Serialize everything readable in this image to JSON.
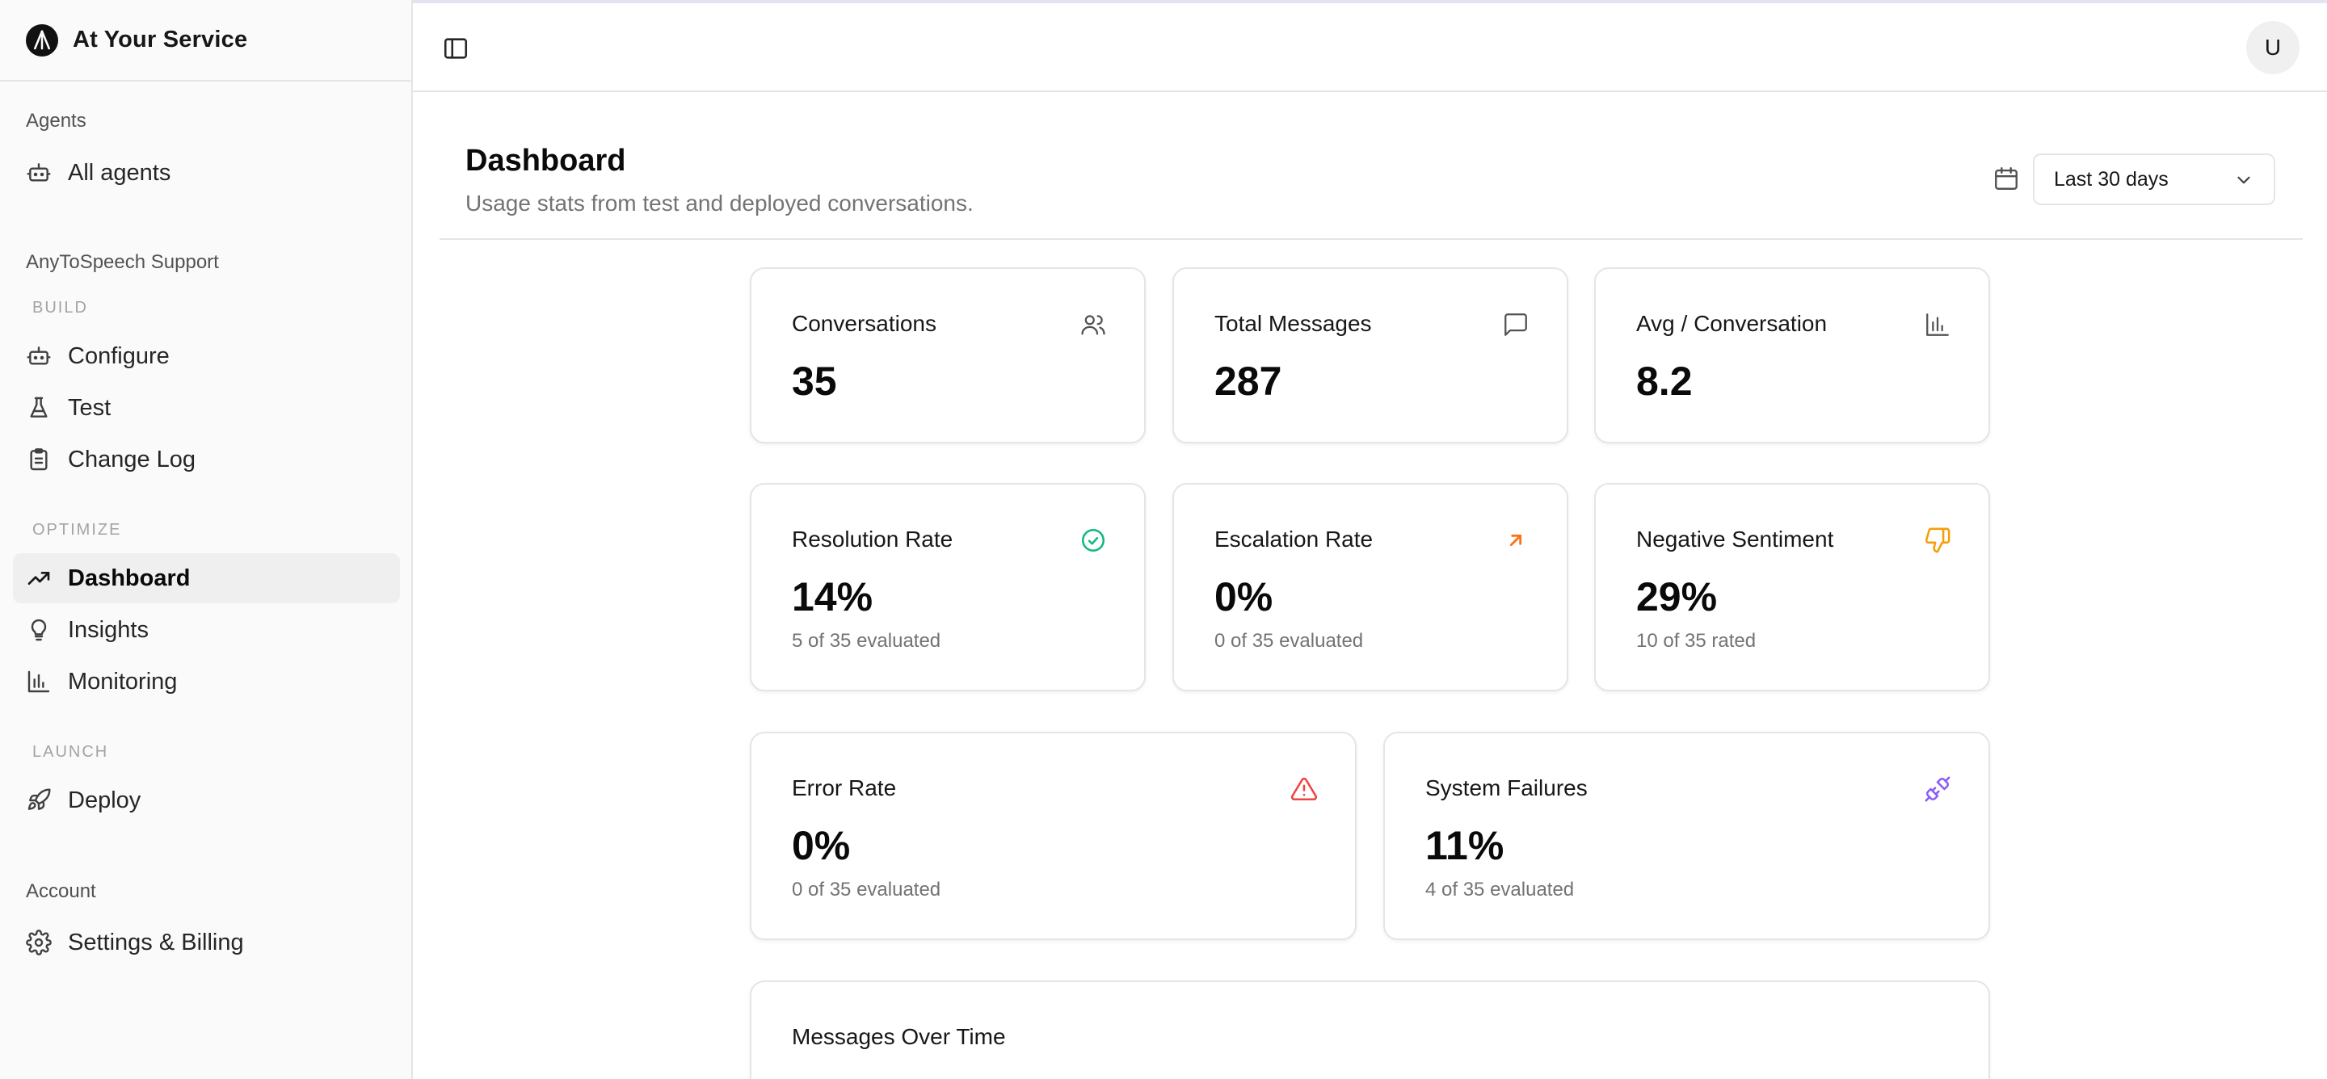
{
  "brand": {
    "name": "At Your Service"
  },
  "sidebar": {
    "agents_title": "Agents",
    "all_agents": "All agents",
    "project_title": "AnyToSpeech Support",
    "build_label": "BUILD",
    "configure": "Configure",
    "test": "Test",
    "change_log": "Change Log",
    "optimize_label": "OPTIMIZE",
    "dashboard": "Dashboard",
    "insights": "Insights",
    "monitoring": "Monitoring",
    "launch_label": "LAUNCH",
    "deploy": "Deploy",
    "account_title": "Account",
    "settings_billing": "Settings & Billing"
  },
  "topbar": {
    "avatar_initial": "U"
  },
  "page": {
    "title": "Dashboard",
    "subtitle": "Usage stats from test and deployed conversations.",
    "date_range": "Last 30 days"
  },
  "stats": {
    "conversations": {
      "label": "Conversations",
      "value": "35"
    },
    "total_messages": {
      "label": "Total Messages",
      "value": "287"
    },
    "avg_conversation": {
      "label": "Avg / Conversation",
      "value": "8.2"
    },
    "resolution_rate": {
      "label": "Resolution Rate",
      "value": "14%",
      "note": "5 of 35 evaluated"
    },
    "escalation_rate": {
      "label": "Escalation Rate",
      "value": "0%",
      "note": "0 of 35 evaluated"
    },
    "negative_sentiment": {
      "label": "Negative Sentiment",
      "value": "29%",
      "note": "10 of 35 rated"
    },
    "error_rate": {
      "label": "Error Rate",
      "value": "0%",
      "note": "0 of 35 evaluated"
    },
    "system_failures": {
      "label": "System Failures",
      "value": "11%",
      "note": "4 of 35 evaluated"
    }
  },
  "messages_over_time": {
    "title": "Messages Over Time"
  },
  "colors": {
    "resolution_icon": "#10b981",
    "escalation_icon": "#f97316",
    "sentiment_icon": "#f59e0b",
    "error_icon": "#ef4444",
    "failure_icon": "#8b5cf6"
  },
  "icons": {
    "brand": "logo-icon",
    "all_agents": "bot-icon",
    "configure": "bot-icon",
    "test": "flask-icon",
    "change_log": "clipboard-icon",
    "dashboard": "trending-up-icon",
    "insights": "lightbulb-icon",
    "monitoring": "bar-chart-icon",
    "deploy": "rocket-icon",
    "settings": "gear-icon"
  }
}
